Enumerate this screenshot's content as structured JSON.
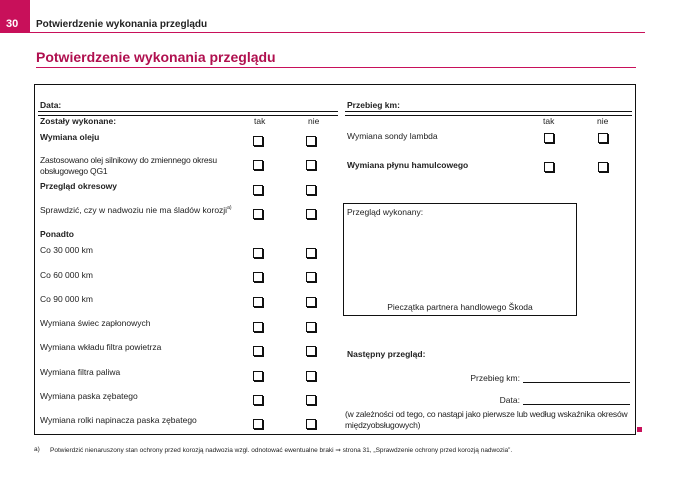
{
  "header": {
    "page_number": "30",
    "title": "Potwierdzenie wykonania przeglądu"
  },
  "main_title": "Potwierdzenie wykonania przeglądu",
  "left": {
    "date_label": "Data:",
    "done_label": "Zostały wykonane:",
    "yes": "tak",
    "no": "nie",
    "rows": [
      {
        "text": "Wymiana oleju",
        "bold": true
      },
      {
        "text": "Zastosowano olej silnikowy do zmiennego okresu obsługowego QG1",
        "bold": false
      },
      {
        "text": "Przegląd okresowy",
        "bold": true
      },
      {
        "text": "Sprawdzić, czy w nadwoziu nie ma śladów korozji",
        "sup": "a)",
        "bold": false
      },
      {
        "text": "Ponadto",
        "bold": true,
        "nobox": true
      },
      {
        "text": "Co 30 000 km"
      },
      {
        "text": "Co 60 000 km"
      },
      {
        "text": "Co 90 000 km"
      },
      {
        "text": "Wymiana świec zapłonowych"
      },
      {
        "text": "Wymiana wkładu filtra powietrza"
      },
      {
        "text": "Wymiana filtra paliwa"
      },
      {
        "text": "Wymiana paska zębatego"
      },
      {
        "text": "Wymiana rolki napinacza paska zębatego"
      }
    ]
  },
  "right": {
    "mileage_label": "Przebieg km:",
    "yes": "tak",
    "no": "nie",
    "rows": [
      {
        "text": "Wymiana sondy lambda"
      },
      {
        "text": "Wymiana płynu hamulcowego",
        "bold": true
      }
    ],
    "stamp_title": "Przegląd wykonany:",
    "stamp_caption": "Pieczątka partnera handlowego Škoda",
    "next_title": "Następny przegląd:",
    "next_mileage": "Przebieg km:",
    "next_date": "Data:",
    "note": "(w zależności od tego, co nastąpi jako pierwsze lub według wskaźnika okresów międzyobsługowych)"
  },
  "footnote": {
    "mark": "a)",
    "text": "Potwierdzić nienaruszony stan ochrony przed korozją nadwozia wzgl. odnotować ewentualne braki ⇒ strona 31, „Sprawdzenie ochrony przed korozją nadwozia”."
  }
}
